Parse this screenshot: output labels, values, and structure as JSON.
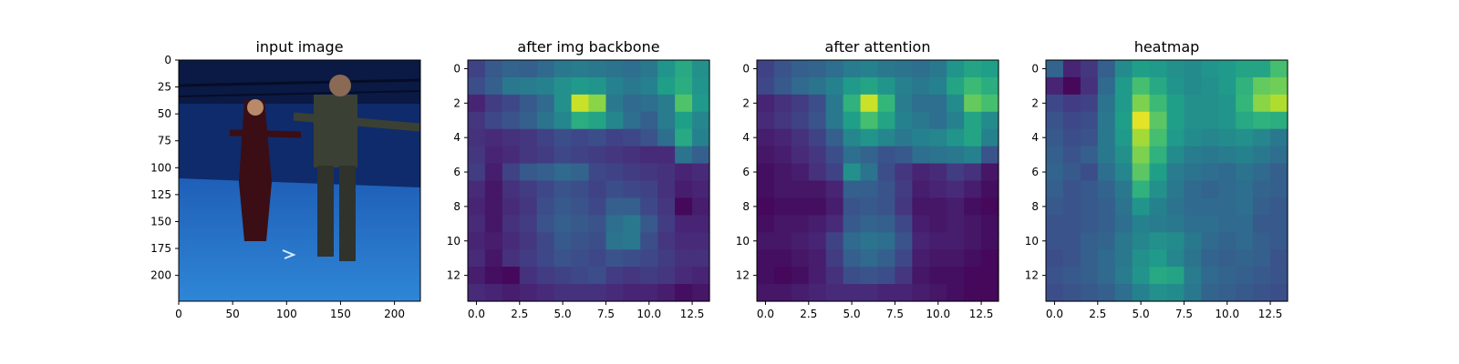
{
  "figure": {
    "panels": [
      {
        "title": "input image"
      },
      {
        "title": "after img backbone"
      },
      {
        "title": "after attention"
      },
      {
        "title": "heatmap"
      }
    ]
  },
  "colors": {
    "stage_dark": "#0f2b6b",
    "stage_floor": "#2f86d6",
    "viridis": [
      "#440154",
      "#482878",
      "#3e4989",
      "#31688e",
      "#26828e",
      "#1f9e89",
      "#35b779",
      "#6ece58",
      "#b5de2b",
      "#fde725"
    ]
  },
  "chart_data": [
    {
      "type": "image",
      "title": "input image",
      "xlim": [
        0,
        224
      ],
      "ylim": [
        224,
        0
      ],
      "xticks": [
        0,
        50,
        100,
        150,
        200
      ],
      "yticks": [
        0,
        25,
        50,
        75,
        100,
        125,
        150,
        175,
        200
      ]
    },
    {
      "type": "heatmap",
      "title": "after img backbone",
      "xlim": [
        -0.5,
        13.5
      ],
      "ylim": [
        13.5,
        -0.5
      ],
      "xticks": [
        0.0,
        2.5,
        5.0,
        7.5,
        10.0,
        12.5
      ],
      "yticks": [
        0,
        2,
        4,
        6,
        8,
        10,
        12
      ],
      "values": [
        [
          0.2,
          0.28,
          0.32,
          0.3,
          0.34,
          0.4,
          0.42,
          0.4,
          0.38,
          0.36,
          0.4,
          0.52,
          0.6,
          0.5
        ],
        [
          0.24,
          0.3,
          0.4,
          0.42,
          0.44,
          0.5,
          0.54,
          0.52,
          0.44,
          0.4,
          0.44,
          0.56,
          0.62,
          0.52
        ],
        [
          0.1,
          0.18,
          0.22,
          0.28,
          0.34,
          0.5,
          0.92,
          0.82,
          0.4,
          0.34,
          0.36,
          0.42,
          0.72,
          0.54
        ],
        [
          0.16,
          0.22,
          0.26,
          0.3,
          0.38,
          0.46,
          0.62,
          0.58,
          0.46,
          0.36,
          0.3,
          0.42,
          0.56,
          0.46
        ],
        [
          0.14,
          0.12,
          0.14,
          0.16,
          0.2,
          0.24,
          0.22,
          0.24,
          0.2,
          0.22,
          0.26,
          0.36,
          0.6,
          0.44
        ],
        [
          0.16,
          0.1,
          0.12,
          0.16,
          0.18,
          0.22,
          0.2,
          0.18,
          0.16,
          0.14,
          0.12,
          0.12,
          0.38,
          0.3
        ],
        [
          0.18,
          0.08,
          0.2,
          0.28,
          0.3,
          0.34,
          0.32,
          0.22,
          0.2,
          0.18,
          0.16,
          0.14,
          0.1,
          0.12
        ],
        [
          0.12,
          0.06,
          0.14,
          0.18,
          0.22,
          0.26,
          0.24,
          0.2,
          0.24,
          0.22,
          0.2,
          0.14,
          0.08,
          0.1
        ],
        [
          0.1,
          0.06,
          0.12,
          0.16,
          0.24,
          0.28,
          0.26,
          0.22,
          0.3,
          0.3,
          0.22,
          0.16,
          0.02,
          0.08
        ],
        [
          0.12,
          0.06,
          0.14,
          0.18,
          0.26,
          0.3,
          0.28,
          0.26,
          0.36,
          0.4,
          0.28,
          0.18,
          0.1,
          0.1
        ],
        [
          0.1,
          0.08,
          0.12,
          0.16,
          0.22,
          0.28,
          0.26,
          0.24,
          0.38,
          0.4,
          0.24,
          0.16,
          0.12,
          0.12
        ],
        [
          0.12,
          0.06,
          0.14,
          0.18,
          0.22,
          0.26,
          0.24,
          0.22,
          0.26,
          0.24,
          0.22,
          0.18,
          0.14,
          0.14
        ],
        [
          0.08,
          0.04,
          0.02,
          0.14,
          0.18,
          0.2,
          0.22,
          0.24,
          0.18,
          0.16,
          0.18,
          0.16,
          0.12,
          0.1
        ],
        [
          0.12,
          0.1,
          0.08,
          0.1,
          0.12,
          0.14,
          0.14,
          0.14,
          0.12,
          0.1,
          0.1,
          0.08,
          0.04,
          0.06
        ]
      ]
    },
    {
      "type": "heatmap",
      "title": "after attention",
      "xlim": [
        -0.5,
        13.5
      ],
      "ylim": [
        13.5,
        -0.5
      ],
      "xticks": [
        0.0,
        2.5,
        5.0,
        7.5,
        10.0,
        12.5
      ],
      "yticks": [
        0,
        2,
        4,
        6,
        8,
        10,
        12
      ],
      "values": [
        [
          0.2,
          0.26,
          0.3,
          0.32,
          0.36,
          0.42,
          0.44,
          0.4,
          0.38,
          0.36,
          0.4,
          0.52,
          0.58,
          0.56
        ],
        [
          0.22,
          0.28,
          0.34,
          0.38,
          0.44,
          0.54,
          0.58,
          0.52,
          0.44,
          0.4,
          0.44,
          0.58,
          0.68,
          0.62
        ],
        [
          0.1,
          0.14,
          0.18,
          0.24,
          0.4,
          0.64,
          0.92,
          0.66,
          0.42,
          0.36,
          0.36,
          0.48,
          0.76,
          0.7
        ],
        [
          0.12,
          0.16,
          0.2,
          0.26,
          0.4,
          0.56,
          0.7,
          0.58,
          0.44,
          0.4,
          0.36,
          0.44,
          0.58,
          0.48
        ],
        [
          0.08,
          0.1,
          0.14,
          0.2,
          0.3,
          0.46,
          0.52,
          0.46,
          0.4,
          0.44,
          0.46,
          0.52,
          0.58,
          0.44
        ],
        [
          0.06,
          0.08,
          0.12,
          0.16,
          0.24,
          0.36,
          0.32,
          0.26,
          0.28,
          0.36,
          0.38,
          0.4,
          0.44,
          0.26
        ],
        [
          0.04,
          0.06,
          0.08,
          0.14,
          0.2,
          0.5,
          0.38,
          0.24,
          0.16,
          0.1,
          0.12,
          0.18,
          0.14,
          0.06
        ],
        [
          0.04,
          0.06,
          0.06,
          0.06,
          0.1,
          0.3,
          0.3,
          0.26,
          0.18,
          0.08,
          0.1,
          0.12,
          0.08,
          0.04
        ],
        [
          0.02,
          0.04,
          0.04,
          0.04,
          0.08,
          0.26,
          0.28,
          0.26,
          0.16,
          0.06,
          0.06,
          0.08,
          0.04,
          0.02
        ],
        [
          0.04,
          0.06,
          0.06,
          0.08,
          0.12,
          0.28,
          0.32,
          0.3,
          0.22,
          0.08,
          0.06,
          0.08,
          0.06,
          0.04
        ],
        [
          0.06,
          0.06,
          0.08,
          0.1,
          0.2,
          0.34,
          0.38,
          0.36,
          0.26,
          0.1,
          0.08,
          0.08,
          0.06,
          0.04
        ],
        [
          0.04,
          0.04,
          0.06,
          0.08,
          0.18,
          0.3,
          0.34,
          0.3,
          0.22,
          0.08,
          0.06,
          0.06,
          0.04,
          0.02
        ],
        [
          0.04,
          0.02,
          0.04,
          0.08,
          0.14,
          0.24,
          0.26,
          0.24,
          0.16,
          0.06,
          0.04,
          0.04,
          0.02,
          0.02
        ],
        [
          0.06,
          0.06,
          0.08,
          0.1,
          0.12,
          0.12,
          0.12,
          0.1,
          0.1,
          0.08,
          0.06,
          0.04,
          0.02,
          0.02
        ]
      ]
    },
    {
      "type": "heatmap",
      "title": "heatmap",
      "xlim": [
        -0.5,
        13.5
      ],
      "ylim": [
        13.5,
        -0.5
      ],
      "xticks": [
        0.0,
        2.5,
        5.0,
        7.5,
        10.0,
        12.5
      ],
      "yticks": [
        0,
        2,
        4,
        6,
        8,
        10,
        12
      ],
      "values": [
        [
          0.32,
          0.1,
          0.16,
          0.3,
          0.48,
          0.56,
          0.54,
          0.5,
          0.48,
          0.52,
          0.54,
          0.58,
          0.58,
          0.7
        ],
        [
          0.1,
          0.02,
          0.14,
          0.34,
          0.54,
          0.7,
          0.6,
          0.52,
          0.48,
          0.5,
          0.54,
          0.64,
          0.76,
          0.78
        ],
        [
          0.22,
          0.18,
          0.2,
          0.38,
          0.54,
          0.8,
          0.68,
          0.56,
          0.5,
          0.5,
          0.52,
          0.66,
          0.82,
          0.88
        ],
        [
          0.26,
          0.22,
          0.24,
          0.4,
          0.56,
          0.96,
          0.74,
          0.56,
          0.5,
          0.5,
          0.52,
          0.6,
          0.64,
          0.62
        ],
        [
          0.28,
          0.24,
          0.26,
          0.4,
          0.54,
          0.86,
          0.7,
          0.54,
          0.48,
          0.46,
          0.48,
          0.5,
          0.46,
          0.4
        ],
        [
          0.3,
          0.26,
          0.3,
          0.4,
          0.5,
          0.8,
          0.64,
          0.48,
          0.42,
          0.4,
          0.42,
          0.44,
          0.4,
          0.36
        ],
        [
          0.32,
          0.28,
          0.24,
          0.36,
          0.46,
          0.74,
          0.56,
          0.42,
          0.38,
          0.36,
          0.34,
          0.38,
          0.34,
          0.3
        ],
        [
          0.3,
          0.26,
          0.28,
          0.32,
          0.4,
          0.64,
          0.5,
          0.4,
          0.34,
          0.32,
          0.34,
          0.36,
          0.32,
          0.3
        ],
        [
          0.28,
          0.26,
          0.28,
          0.3,
          0.38,
          0.52,
          0.44,
          0.38,
          0.34,
          0.34,
          0.34,
          0.36,
          0.3,
          0.28
        ],
        [
          0.26,
          0.26,
          0.28,
          0.3,
          0.36,
          0.44,
          0.42,
          0.4,
          0.36,
          0.36,
          0.34,
          0.34,
          0.28,
          0.28
        ],
        [
          0.26,
          0.26,
          0.3,
          0.32,
          0.4,
          0.46,
          0.5,
          0.48,
          0.4,
          0.34,
          0.32,
          0.34,
          0.3,
          0.28
        ],
        [
          0.24,
          0.26,
          0.3,
          0.34,
          0.4,
          0.5,
          0.54,
          0.46,
          0.38,
          0.32,
          0.3,
          0.32,
          0.3,
          0.26
        ],
        [
          0.26,
          0.28,
          0.3,
          0.34,
          0.42,
          0.52,
          0.6,
          0.58,
          0.42,
          0.34,
          0.32,
          0.3,
          0.28,
          0.26
        ],
        [
          0.24,
          0.26,
          0.28,
          0.3,
          0.36,
          0.44,
          0.5,
          0.48,
          0.4,
          0.32,
          0.3,
          0.28,
          0.26,
          0.24
        ]
      ]
    }
  ]
}
